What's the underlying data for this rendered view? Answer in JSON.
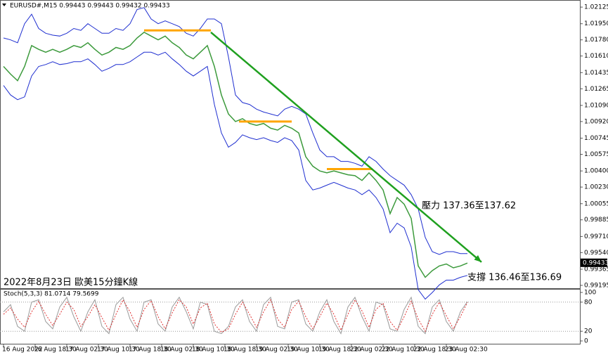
{
  "chart_data": [
    {
      "type": "line",
      "title": "EURUSD#,M15  0.99443 0.99443 0.99432 0.99433",
      "xlim": [
        -0.5,
        82
      ],
      "ylim": [
        0.99165,
        1.02185
      ],
      "yticks": [
        1.02125,
        {
          "value": 1.0195,
          "label": "1.01950"
        },
        {
          "value": 1.0178,
          "label": "1.01780"
        },
        {
          "value": 1.0161,
          "label": "1.01610"
        },
        1.01435,
        1.01265,
        {
          "value": 1.0109,
          "label": "1.01090"
        },
        {
          "value": 1.0092,
          "label": "1.00920"
        },
        1.00745,
        1.00575,
        {
          "value": 1.004,
          "label": "1.00400"
        },
        {
          "value": 1.0023,
          "label": "1.00230"
        },
        1.00055,
        0.99885,
        {
          "value": 0.9971,
          "label": "0.99710"
        },
        {
          "value": 0.9954,
          "label": "0.99540"
        },
        0.99365,
        0.99195
      ],
      "xticks": [
        {
          "value": 0,
          "label": "16 Aug 2022"
        },
        {
          "value": 4.5,
          "label": "16 Aug 18:30"
        },
        {
          "value": 9,
          "label": "17 Aug 02:30"
        },
        {
          "value": 13.5,
          "label": "17 Aug 10:30"
        },
        {
          "value": 18,
          "label": "17 Aug 18:30"
        },
        {
          "value": 22.5,
          "label": "18 Aug 02:30"
        },
        {
          "value": 27,
          "label": "18 Aug 10:30"
        },
        {
          "value": 31.5,
          "label": "18 Aug 18:30"
        },
        {
          "value": 36,
          "label": "19 Aug 02:30"
        },
        {
          "value": 40.5,
          "label": "19 Aug 10:30"
        },
        {
          "value": 45,
          "label": "19 Aug 18:30"
        },
        {
          "value": 49.5,
          "label": "22 Aug 02:30"
        },
        {
          "value": 54,
          "label": "22 Aug 10:30"
        },
        {
          "value": 58.5,
          "label": "22 Aug 18:30"
        },
        {
          "value": 63,
          "label": "23 Aug 02:30"
        }
      ],
      "last_price": 0.99433,
      "series": [
        {
          "color": "#1f2fd0",
          "values": [
            1.018,
            1.0178,
            1.0175,
            1.0195,
            1.0205,
            1.019,
            1.0185,
            1.0183,
            1.0182,
            1.0185,
            1.019,
            1.0188,
            1.0195,
            1.019,
            1.0185,
            1.0185,
            1.019,
            1.0188,
            1.0195,
            1.021,
            1.0212,
            1.02,
            1.0195,
            1.0198,
            1.0195,
            1.0192,
            1.0185,
            1.0182,
            1.019,
            1.02,
            1.02,
            1.0195,
            1.016,
            1.012,
            1.0112,
            1.011,
            1.0105,
            1.0102,
            1.01,
            1.0098,
            1.0105,
            1.0108,
            1.0105,
            1.01,
            1.008,
            1.0062,
            1.0055,
            1.0055,
            1.005,
            1.005,
            1.0048,
            1.0045,
            1.0055,
            1.005,
            1.0042,
            1.0035,
            1.003,
            1.0025,
            1.0015,
            1.0,
            0.997,
            0.9955,
            0.9952,
            0.9955,
            0.9955,
            0.9953,
            0.9953
          ]
        },
        {
          "color": "#1f2fd0",
          "values": [
            1.013,
            1.012,
            1.0115,
            1.0118,
            1.014,
            1.015,
            1.0152,
            1.0155,
            1.0152,
            1.0153,
            1.0155,
            1.0155,
            1.0158,
            1.0152,
            1.0145,
            1.0148,
            1.0152,
            1.0152,
            1.0155,
            1.016,
            1.0165,
            1.0165,
            1.0162,
            1.0165,
            1.0158,
            1.0152,
            1.0145,
            1.014,
            1.0145,
            1.015,
            1.011,
            1.008,
            1.0065,
            1.007,
            1.0078,
            1.0075,
            1.0073,
            1.0075,
            1.0072,
            1.007,
            1.0075,
            1.0072,
            1.0062,
            1.003,
            1.002,
            1.0022,
            1.0025,
            1.0028,
            1.0025,
            1.0022,
            1.002,
            1.0015,
            1.002,
            1.0012,
            1.0,
            0.9975,
            0.9985,
            0.998,
            0.996,
            0.9915,
            0.9905,
            0.9912,
            0.992,
            0.9925,
            0.9925,
            0.9928,
            0.993
          ]
        },
        {
          "color": "#3c9a3c",
          "values": [
            1.015,
            1.0142,
            1.0135,
            1.015,
            1.0172,
            1.0168,
            1.0165,
            1.0168,
            1.0165,
            1.0168,
            1.0172,
            1.017,
            1.0175,
            1.0168,
            1.0162,
            1.0165,
            1.017,
            1.0168,
            1.0172,
            1.018,
            1.0186,
            1.0182,
            1.0178,
            1.0182,
            1.0175,
            1.017,
            1.0162,
            1.0158,
            1.0165,
            1.0172,
            1.015,
            1.012,
            1.01,
            1.0092,
            1.0095,
            1.009,
            1.0088,
            1.009,
            1.0085,
            1.0083,
            1.0088,
            1.0085,
            1.008,
            1.0055,
            1.0045,
            1.004,
            1.0038,
            1.004,
            1.0038,
            1.0036,
            1.0035,
            1.003,
            1.0038,
            1.003,
            1.002,
            0.9995,
            1.0012,
            1.0005,
            0.999,
            0.994,
            0.9928,
            0.9935,
            0.994,
            0.9942,
            0.9938,
            0.994,
            0.9943
          ]
        }
      ],
      "segments": [
        {
          "color": "#ffa500",
          "x": [
            20,
            29.5
          ],
          "y": [
            1.0188,
            1.0188
          ]
        },
        {
          "color": "#ffa500",
          "x": [
            33.5,
            41
          ],
          "y": [
            1.0092,
            1.0092
          ]
        },
        {
          "color": "#ffa500",
          "x": [
            46,
            52.5
          ],
          "y": [
            1.0042,
            1.0042
          ]
        },
        {
          "color": "#1fa01f",
          "x": [
            29.5,
            68
          ],
          "y": [
            1.0186,
            0.9944
          ]
        }
      ],
      "annotations": [
        "壓力 137.36至137.62",
        "支撐 136.46至136.69",
        "2022年8月23日 歐美15分鐘K線"
      ]
    },
    {
      "type": "line",
      "title": "Stoch(5,3,3) 81.0714 79.5699",
      "ylim": [
        0,
        100
      ],
      "yticks": [
        0,
        20,
        80,
        100
      ],
      "levels": [
        20,
        80
      ],
      "series": [
        {
          "color": "#9a9a9a",
          "dash": false,
          "values": [
            60,
            75,
            30,
            20,
            80,
            85,
            40,
            25,
            70,
            90,
            50,
            20,
            60,
            85,
            30,
            15,
            75,
            90,
            45,
            20,
            80,
            85,
            35,
            20,
            70,
            90,
            60,
            25,
            80,
            75,
            20,
            15,
            30,
            70,
            85,
            40,
            20,
            75,
            90,
            30,
            25,
            80,
            85,
            35,
            20,
            60,
            85,
            40,
            15,
            70,
            90,
            50,
            20,
            80,
            75,
            25,
            20,
            65,
            90,
            30,
            15,
            70,
            85,
            40,
            20,
            60,
            81.0714
          ]
        },
        {
          "color": "#e03030",
          "dash": true,
          "values": [
            55,
            68,
            45,
            28,
            60,
            82,
            55,
            32,
            55,
            80,
            65,
            30,
            50,
            75,
            48,
            22,
            55,
            85,
            60,
            28,
            65,
            83,
            50,
            25,
            58,
            85,
            70,
            35,
            68,
            78,
            35,
            18,
            25,
            55,
            80,
            55,
            28,
            60,
            85,
            45,
            28,
            65,
            82,
            50,
            25,
            50,
            78,
            55,
            22,
            55,
            85,
            62,
            28,
            65,
            78,
            40,
            22,
            50,
            82,
            45,
            20,
            55,
            80,
            52,
            25,
            50,
            79.5699
          ]
        }
      ]
    }
  ]
}
